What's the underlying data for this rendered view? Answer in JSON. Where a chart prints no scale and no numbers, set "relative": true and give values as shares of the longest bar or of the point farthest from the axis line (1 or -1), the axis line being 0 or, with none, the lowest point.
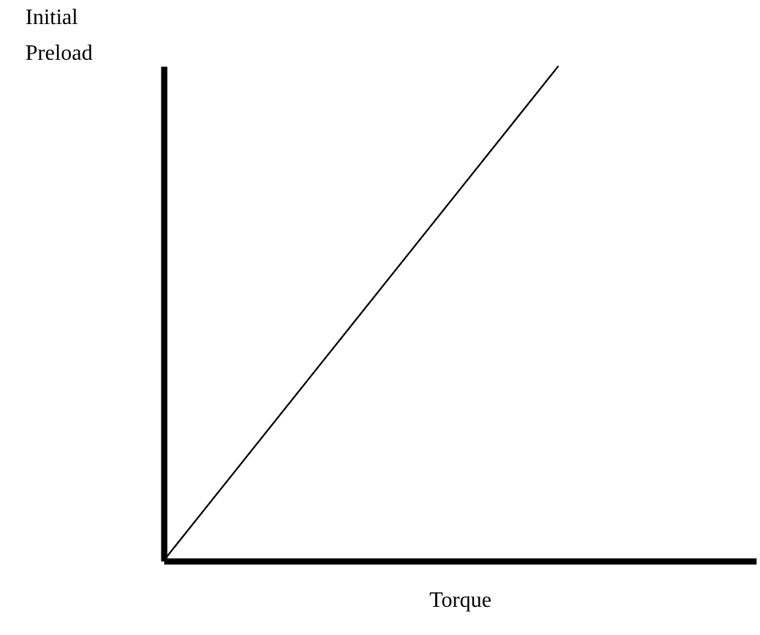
{
  "chart_data": {
    "type": "line",
    "xlabel": "Torque",
    "ylabel": "Initial\nPreload",
    "relative": true,
    "tick_labels": false,
    "categories": [
      null,
      null,
      null,
      null
    ],
    "series": [
      {
        "color": "#000000",
        "values": [
          0,
          0.5,
          1,
          null
        ]
      }
    ]
  }
}
